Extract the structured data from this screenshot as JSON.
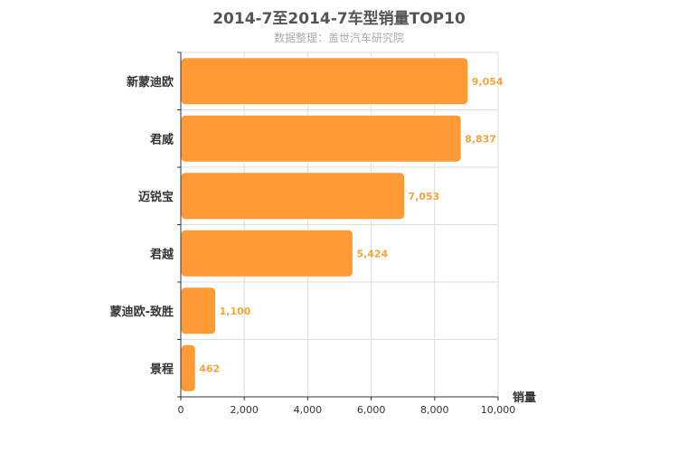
{
  "chart_data": {
    "type": "bar",
    "orientation": "horizontal",
    "title": "2014-7至2014-7车型销量TOP10",
    "subtitle": "数据整理：盖世汽车研究院",
    "xlabel": "销量",
    "ylabel": "",
    "categories": [
      "新蒙迪欧",
      "君威",
      "迈锐宝",
      "君越",
      "蒙迪欧-致胜",
      "景程"
    ],
    "values": [
      9054,
      8837,
      7053,
      5424,
      1100,
      462
    ],
    "value_labels": [
      "9,054",
      "8,837",
      "7,053",
      "5,424",
      "1,100",
      "462"
    ],
    "xlim": [
      0,
      10000
    ],
    "x_ticks": [
      0,
      2000,
      4000,
      6000,
      8000,
      10000
    ],
    "x_tick_labels": [
      "0",
      "2,000",
      "4,000",
      "6,000",
      "8,000",
      "10,000"
    ],
    "grid": true,
    "legend": "none",
    "colors": {
      "bar": "#ff9a35",
      "bar_stroke": "#ffffff",
      "value_label": "#f0a540",
      "grid": "#dddddd",
      "axis": "#333333",
      "category_label": "#333333"
    }
  }
}
